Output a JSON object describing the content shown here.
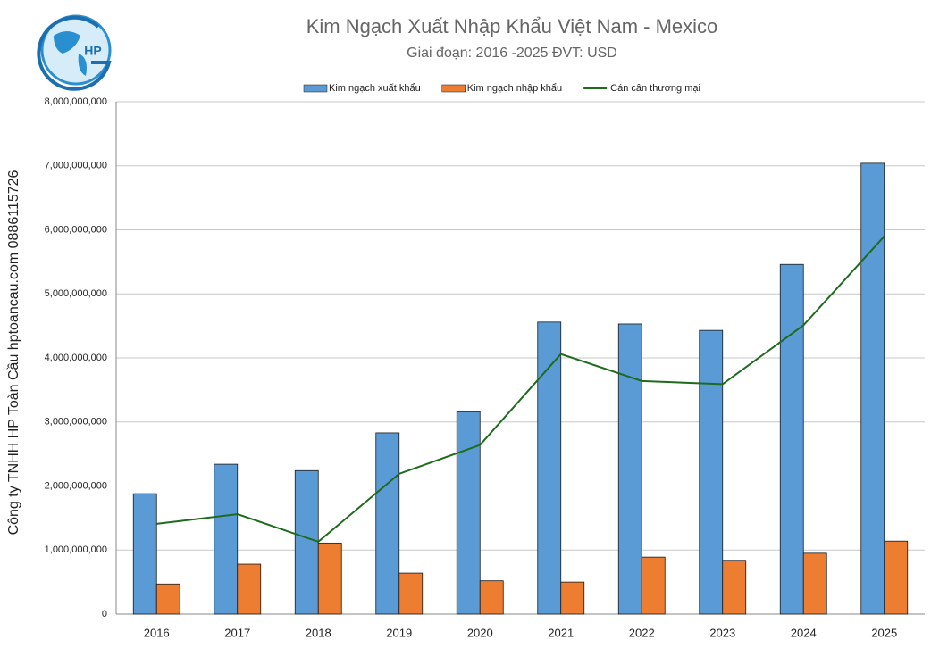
{
  "logo_text": "HP",
  "side_text": "Công ty TNHH HP Toàn Cầu hptoancau.com 0886115726",
  "chart_data": {
    "type": "bar+line",
    "title": "Kim Ngạch Xuất Nhập Khẩu Việt Nam - Mexico",
    "subtitle": "Giai đoạn: 2016 -2025  ĐVT: USD",
    "categories": [
      "2016",
      "2017",
      "2018",
      "2019",
      "2020",
      "2021",
      "2022",
      "2023",
      "2024",
      "2025"
    ],
    "series": [
      {
        "name": "Kim ngạch xuất khẩu",
        "type": "bar",
        "color": "#5b9bd5",
        "values": [
          1880000000,
          2340000000,
          2240000000,
          2830000000,
          3160000000,
          4560000000,
          4530000000,
          4430000000,
          5460000000,
          7040000000
        ]
      },
      {
        "name": "Kim ngạch nhập khẩu",
        "type": "bar",
        "color": "#ed7d31",
        "values": [
          470000000,
          780000000,
          1110000000,
          640000000,
          520000000,
          500000000,
          890000000,
          840000000,
          950000000,
          1140000000
        ]
      },
      {
        "name": "Cán cân thương mại",
        "type": "line",
        "color": "#1e6b1e",
        "values": [
          1410000000,
          1560000000,
          1130000000,
          2190000000,
          2640000000,
          4060000000,
          3640000000,
          3590000000,
          4510000000,
          5900000000
        ]
      }
    ],
    "ylim": [
      0,
      8000000000
    ],
    "yticks": [
      0,
      {
        "value": 1000000000,
        "label": "1,000,000,000"
      },
      {
        "value": 2000000000,
        "label": "2,000,000,000"
      },
      {
        "value": 3000000000,
        "label": "3,000,000,000"
      },
      {
        "value": 4000000000,
        "label": "4,000,000,000"
      },
      {
        "value": 5000000000,
        "label": "5,000,000,000"
      },
      {
        "value": 6000000000,
        "label": "6,000,000,000"
      },
      {
        "value": 7000000000,
        "label": "7,000,000,000"
      },
      {
        "value": 8000000000,
        "label": "8,000,000,000"
      }
    ],
    "grid": true,
    "legend": "top"
  }
}
